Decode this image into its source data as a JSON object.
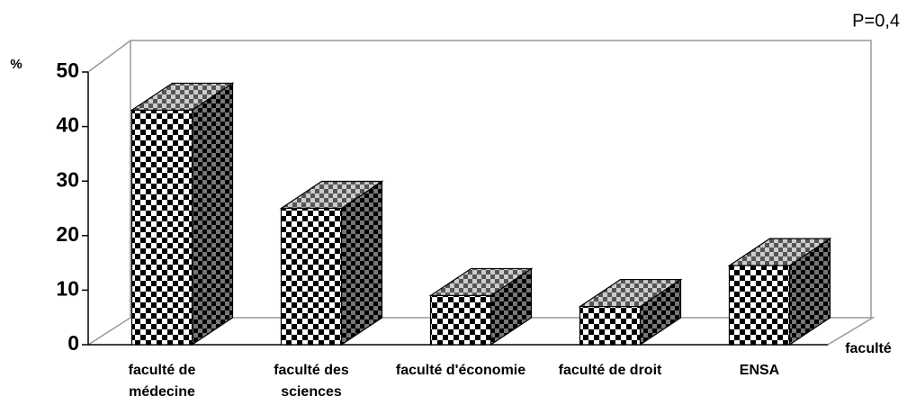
{
  "chart_data": {
    "type": "bar3d",
    "annotation": "P=0,4",
    "y_label": "%",
    "x_label": "faculté",
    "categories": [
      "faculté de médecine",
      "faculté des sciences",
      "faculté d'économie",
      "faculté de droit",
      "ENSA"
    ],
    "values": [
      43,
      25,
      9,
      7,
      14.5
    ],
    "ylim": [
      0,
      50
    ],
    "yticks": [
      0,
      10,
      20,
      30,
      40,
      50
    ]
  }
}
